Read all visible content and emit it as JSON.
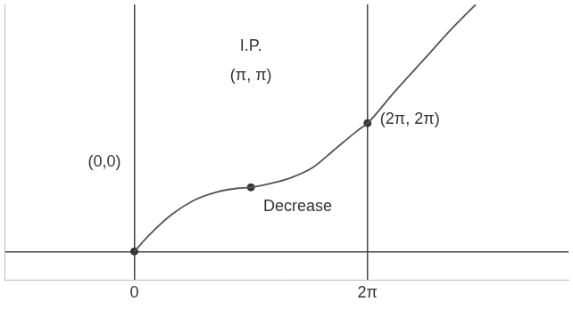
{
  "chart_data": {
    "type": "line",
    "x": [
      0,
      0.4,
      1,
      1.6,
      2.2,
      2.8,
      3.1416,
      3.6,
      4.2,
      4.8,
      5.4,
      6.0,
      6.2832,
      7.0,
      7.8,
      8.6,
      9.2
    ],
    "values": [
      0,
      0.8,
      1.8,
      2.5,
      2.9,
      3.1,
      3.1416,
      3.3,
      3.6,
      4.1,
      5.0,
      5.9,
      6.2832,
      7.8,
      9.4,
      11.0,
      12.1
    ],
    "color": "#555555",
    "points": [
      {
        "x": 0,
        "y": 0,
        "label": "(0,0)"
      },
      {
        "x": 3.1416,
        "y": 3.1416,
        "label": "(π, π)"
      },
      {
        "x": 6.2832,
        "y": 6.2832,
        "label": "(2π, 2π)"
      }
    ],
    "annotations": [
      {
        "text": "I.P.",
        "x": 3.1416,
        "y": 3.1416
      },
      {
        "text": "Decrease",
        "x": 4.4,
        "y": 2.2
      }
    ],
    "xlim": [
      -3.5,
      11.7
    ],
    "ylim": [
      -1.4,
      12.1
    ],
    "xticks": [
      0,
      {
        "value": 6.2832,
        "label": "2π"
      }
    ],
    "yticks": [
      0
    ],
    "tick_labels": "x",
    "grid": true
  }
}
